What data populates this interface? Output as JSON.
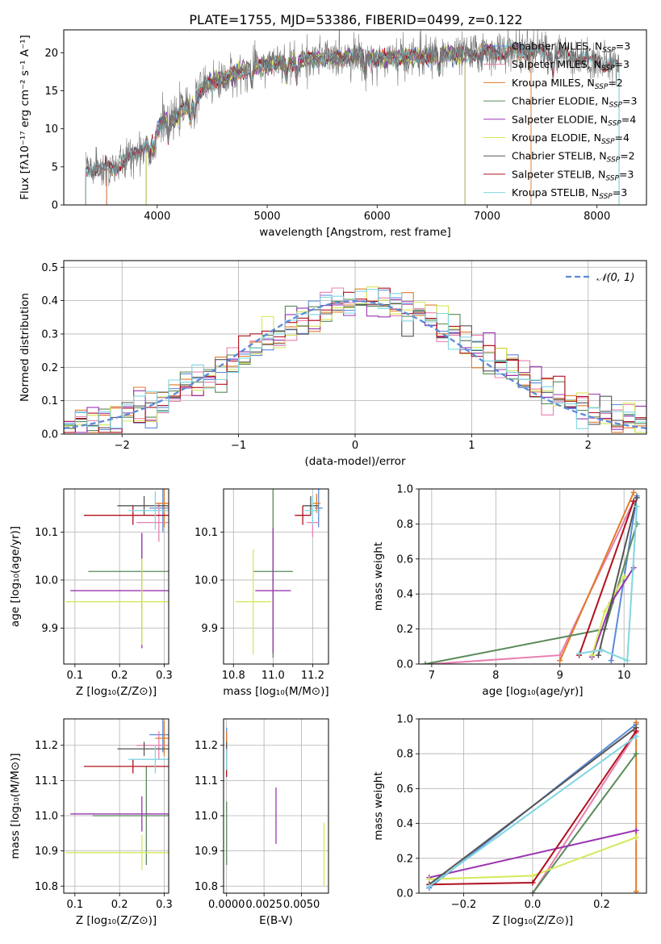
{
  "title": "PLATE=1755, MJD=53386, FIBERID=0499, z=0.122",
  "colors": {
    "Chabrier MILES": "#5b8ad8",
    "Salpeter MILES": "#e87fb0",
    "Kroupa MILES": "#e07b2a",
    "Chabrier ELODIE": "#5a8a5a",
    "Salpeter ELODIE": "#9a35b0",
    "Kroupa ELODIE": "#d6e85a",
    "Chabrier STELIB": "#555555",
    "Salpeter STELIB": "#b0101e",
    "Kroupa STELIB": "#7fd6e0"
  },
  "chart_data": [
    {
      "type": "line",
      "id": "spectrum",
      "title": "PLATE=1755, MJD=53386, FIBERID=0499, z=0.122",
      "xlabel": "wavelength [Angstrom, rest frame]",
      "ylabel": "Flux [fλ10⁻¹⁷ erg cm⁻² s⁻¹ A⁻¹]",
      "xlim": [
        3150,
        8450
      ],
      "ylim": [
        0,
        23
      ],
      "xticks": [
        4000,
        5000,
        6000,
        7000,
        8000
      ],
      "yticks": [
        0,
        5,
        10,
        15,
        20
      ],
      "grid": false,
      "legend_position": "right",
      "legend": [
        "Chabrier MILES, N_SSP=3",
        "Salpeter MILES, N_SSP=3",
        "Kroupa MILES, N_SSP=2",
        "Chabrier ELODIE, N_SSP=3",
        "Salpeter ELODIE, N_SSP=4",
        "Kroupa ELODIE, N_SSP=4",
        "Chabrier STELIB, N_SSP=2",
        "Salpeter STELIB, N_SSP=3",
        "Kroupa STELIB, N_SSP=3"
      ],
      "continuum": {
        "x": [
          3350,
          3500,
          3650,
          3800,
          3950,
          4050,
          4150,
          4300,
          4450,
          4600,
          4800,
          5000,
          5200,
          5400,
          5600,
          5800,
          6000,
          6200,
          6400,
          6600,
          6800,
          7000,
          7200,
          7400,
          7600,
          7800,
          8000,
          8200
        ],
        "y": [
          4.8,
          4.6,
          5.2,
          6.8,
          8.5,
          11.0,
          11.3,
          13.5,
          15.8,
          16.5,
          17.8,
          18.5,
          18.7,
          19.2,
          19.3,
          19.6,
          19.2,
          19.3,
          19.5,
          19.8,
          19.8,
          20.0,
          20.2,
          20.1,
          20.0,
          19.5,
          18.8,
          18.2
        ]
      },
      "model_ranges": [
        {
          "model": "Chabrier MILES",
          "x": [
            3540,
            7400
          ]
        },
        {
          "model": "Salpeter MILES",
          "x": [
            3540,
            7400
          ]
        },
        {
          "model": "Kroupa MILES",
          "x": [
            3540,
            7400
          ]
        },
        {
          "model": "Chabrier ELODIE",
          "x": [
            3900,
            6800
          ]
        },
        {
          "model": "Salpeter ELODIE",
          "x": [
            3900,
            6800
          ]
        },
        {
          "model": "Kroupa ELODIE",
          "x": [
            3900,
            6800
          ]
        },
        {
          "model": "Chabrier STELIB",
          "x": [
            3350,
            8200
          ]
        },
        {
          "model": "Salpeter STELIB",
          "x": [
            3350,
            8200
          ]
        },
        {
          "model": "Kroupa STELIB",
          "x": [
            3350,
            8200
          ]
        }
      ]
    },
    {
      "type": "histogram",
      "id": "residuals",
      "xlabel": "(data-model)/error",
      "ylabel": "Normed distribution",
      "xlim": [
        -2.5,
        2.5
      ],
      "ylim": [
        0,
        0.52
      ],
      "xticks": [
        -2,
        -1,
        0,
        1,
        2
      ],
      "yticks": [
        0.0,
        0.1,
        0.2,
        0.3,
        0.4,
        0.5
      ],
      "grid": true,
      "legend_position": "top-right",
      "reference_curve": {
        "name": "𝒩(0, 1)",
        "mean": 0,
        "sd": 1
      }
    },
    {
      "type": "scatter",
      "id": "z-age",
      "xlabel": "Z [log₁₀(Z/Z⊙)]",
      "ylabel": "age  [log₁₀(age/yr)]",
      "xlim": [
        0.075,
        0.31
      ],
      "ylim": [
        9.825,
        10.19
      ],
      "xticks": [
        0.1,
        0.2,
        0.3
      ],
      "yticks": [
        9.9,
        10.0,
        10.1
      ],
      "grid": true,
      "points": [
        {
          "model": "Chabrier MILES",
          "x": 0.297,
          "y": 10.15,
          "xerr": 0.03,
          "yerr": 0.05
        },
        {
          "model": "Salpeter MILES",
          "x": 0.288,
          "y": 10.12,
          "xerr": 0.05,
          "yerr": 0.04
        },
        {
          "model": "Kroupa MILES",
          "x": 0.3,
          "y": 10.16,
          "xerr": 0.02,
          "yerr": 0.05
        },
        {
          "model": "Chabrier ELODIE",
          "x": 0.25,
          "y": 10.018,
          "xerr": 0.12,
          "yerr": 0.08
        },
        {
          "model": "Salpeter ELODIE",
          "x": 0.25,
          "y": 9.978,
          "xerr": 0.16,
          "yerr": 0.12
        },
        {
          "model": "Kroupa ELODIE",
          "x": 0.25,
          "y": 9.955,
          "xerr": 0.17,
          "yerr": 0.09
        },
        {
          "model": "Chabrier STELIB",
          "x": 0.255,
          "y": 10.155,
          "xerr": 0.06,
          "yerr": 0.02
        },
        {
          "model": "Salpeter STELIB",
          "x": 0.23,
          "y": 10.135,
          "xerr": 0.11,
          "yerr": 0.02
        },
        {
          "model": "Kroupa STELIB",
          "x": 0.28,
          "y": 10.145,
          "xerr": 0.06,
          "yerr": 0.04
        }
      ]
    },
    {
      "type": "scatter",
      "id": "mass-age",
      "xlabel": "mass [log₁₀(M/M⊙)]",
      "ylabel": "",
      "xlim": [
        10.75,
        11.28
      ],
      "ylim": [
        9.825,
        10.19
      ],
      "xticks": [
        10.8,
        11.0,
        11.2
      ],
      "yticks": [
        9.9,
        10.0,
        10.1
      ],
      "grid": true,
      "points": [
        {
          "model": "Chabrier MILES",
          "x": 11.23,
          "y": 10.15,
          "xerr": 0.02,
          "yerr": 0.04
        },
        {
          "model": "Salpeter MILES",
          "x": 11.2,
          "y": 10.12,
          "xerr": 0.03,
          "yerr": 0.03
        },
        {
          "model": "Kroupa MILES",
          "x": 11.22,
          "y": 10.16,
          "xerr": 0.02,
          "yerr": 0.02
        },
        {
          "model": "Chabrier ELODIE",
          "x": 11.0,
          "y": 10.018,
          "xerr": 0.1,
          "yerr": 0.18
        },
        {
          "model": "Salpeter ELODIE",
          "x": 11.0,
          "y": 9.978,
          "xerr": 0.09,
          "yerr": 0.13
        },
        {
          "model": "Kroupa ELODIE",
          "x": 10.9,
          "y": 9.955,
          "xerr": 0.09,
          "yerr": 0.11
        },
        {
          "model": "Chabrier STELIB",
          "x": 11.19,
          "y": 10.155,
          "xerr": 0.04,
          "yerr": 0.02
        },
        {
          "model": "Salpeter STELIB",
          "x": 11.15,
          "y": 10.135,
          "xerr": 0.04,
          "yerr": 0.02
        },
        {
          "model": "Kroupa STELIB",
          "x": 11.2,
          "y": 10.145,
          "xerr": 0.04,
          "yerr": 0.03
        }
      ]
    },
    {
      "type": "line",
      "id": "age-weight",
      "xlabel": "age  [log₁₀(age/yr)]",
      "ylabel": "mass weight",
      "xlim": [
        6.8,
        10.35
      ],
      "ylim": [
        0,
        1
      ],
      "xticks": [
        7,
        8,
        9,
        10
      ],
      "yticks": [
        0.0,
        0.2,
        0.4,
        0.6,
        0.8,
        1.0
      ],
      "grid": true,
      "series": [
        {
          "model": "Chabrier MILES",
          "x": [
            9.8,
            10.2,
            10.2
          ],
          "y": [
            0.02,
            0.96,
            0.95
          ]
        },
        {
          "model": "Salpeter MILES",
          "x": [
            7.0,
            9.0,
            10.15
          ],
          "y": [
            0.0,
            0.05,
            0.93
          ]
        },
        {
          "model": "Kroupa MILES",
          "x": [
            9.0,
            10.15
          ],
          "y": [
            0.02,
            0.98
          ]
        },
        {
          "model": "Chabrier ELODIE",
          "x": [
            6.9,
            9.7,
            10.2
          ],
          "y": [
            0.0,
            0.2,
            0.8
          ]
        },
        {
          "model": "Salpeter ELODIE",
          "x": [
            9.5,
            9.8,
            10.15
          ],
          "y": [
            0.04,
            0.35,
            0.55
          ]
        },
        {
          "model": "Kroupa ELODIE",
          "x": [
            9.5,
            9.7,
            10.0
          ],
          "y": [
            0.05,
            0.3,
            0.5
          ]
        },
        {
          "model": "Chabrier STELIB",
          "x": [
            9.6,
            10.2
          ],
          "y": [
            0.05,
            0.95
          ]
        },
        {
          "model": "Salpeter STELIB",
          "x": [
            9.3,
            10.15
          ],
          "y": [
            0.05,
            0.93
          ]
        },
        {
          "model": "Kroupa STELIB",
          "x": [
            9.3,
            9.65,
            10.05,
            10.2
          ],
          "y": [
            0.06,
            0.08,
            0.02,
            0.9
          ]
        }
      ]
    },
    {
      "type": "scatter",
      "id": "z-mass",
      "xlabel": "Z [log₁₀(Z/Z⊙)]",
      "ylabel": "mass [log₁₀(M/M⊙)]",
      "xlim": [
        0.075,
        0.31
      ],
      "ylim": [
        10.78,
        11.275
      ],
      "xticks": [
        0.1,
        0.2,
        0.3
      ],
      "yticks": [
        10.8,
        10.9,
        11.0,
        11.1,
        11.2
      ],
      "grid": true,
      "points": [
        {
          "model": "Chabrier MILES",
          "x": 0.297,
          "y": 11.23,
          "xerr": 0.03,
          "yerr": 0.05
        },
        {
          "model": "Salpeter MILES",
          "x": 0.288,
          "y": 11.2,
          "xerr": 0.05,
          "yerr": 0.04
        },
        {
          "model": "Kroupa MILES",
          "x": 0.3,
          "y": 11.22,
          "xerr": 0.02,
          "yerr": 0.05
        },
        {
          "model": "Chabrier ELODIE",
          "x": 0.26,
          "y": 11.0,
          "xerr": 0.12,
          "yerr": 0.14
        },
        {
          "model": "Salpeter ELODIE",
          "x": 0.25,
          "y": 11.005,
          "xerr": 0.16,
          "yerr": 0.05
        },
        {
          "model": "Kroupa ELODIE",
          "x": 0.25,
          "y": 10.895,
          "xerr": 0.17,
          "yerr": 0.05
        },
        {
          "model": "Chabrier STELIB",
          "x": 0.255,
          "y": 11.19,
          "xerr": 0.06,
          "yerr": 0.02
        },
        {
          "model": "Salpeter STELIB",
          "x": 0.23,
          "y": 11.14,
          "xerr": 0.11,
          "yerr": 0.02
        },
        {
          "model": "Kroupa STELIB",
          "x": 0.28,
          "y": 11.16,
          "xerr": 0.06,
          "yerr": 0.04
        }
      ]
    },
    {
      "type": "scatter",
      "id": "ebv-mass",
      "xlabel": "E(B-V)",
      "ylabel": "",
      "xlim": [
        -0.0002,
        0.0068
      ],
      "ylim": [
        10.78,
        11.275
      ],
      "xticks": [
        0.0,
        0.0025,
        0.005
      ],
      "xticklabels": [
        "0.0000",
        "0.0025",
        "0.0050"
      ],
      "yticks": [
        10.8,
        10.9,
        11.0,
        11.1,
        11.2
      ],
      "grid": true,
      "points": [
        {
          "model": "Chabrier MILES",
          "x": 0.0,
          "y": 11.23,
          "xerr": 0,
          "yerr": 0.02
        },
        {
          "model": "Salpeter MILES",
          "x": 0.0,
          "y": 11.2,
          "xerr": 0,
          "yerr": 0.03
        },
        {
          "model": "Kroupa MILES",
          "x": 0.0,
          "y": 11.22,
          "xerr": 0,
          "yerr": 0.02
        },
        {
          "model": "Chabrier ELODIE",
          "x": 0.0,
          "y": 10.95,
          "xerr": 0,
          "yerr": 0.09
        },
        {
          "model": "Salpeter ELODIE",
          "x": 0.0033,
          "y": 11.0,
          "xerr": 0,
          "yerr": 0.08
        },
        {
          "model": "Kroupa ELODIE",
          "x": 0.0065,
          "y": 10.89,
          "xerr": 0,
          "yerr": 0.09
        },
        {
          "model": "Chabrier STELIB",
          "x": 0.0,
          "y": 11.19,
          "xerr": 0,
          "yerr": 0.02
        },
        {
          "model": "Salpeter STELIB",
          "x": 0.0,
          "y": 11.15,
          "xerr": 0,
          "yerr": 0.04
        },
        {
          "model": "Kroupa STELIB",
          "x": 0.0,
          "y": 11.16,
          "xerr": 0,
          "yerr": 0.03
        }
      ]
    },
    {
      "type": "line",
      "id": "z-weight",
      "xlabel": "Z [log₁₀(Z/Z⊙)]",
      "ylabel": "mass weight",
      "xlim": [
        -0.33,
        0.33
      ],
      "ylim": [
        0,
        1
      ],
      "xticks": [
        -0.2,
        0.0,
        0.2
      ],
      "yticks": [
        0.0,
        0.2,
        0.4,
        0.6,
        0.8,
        1.0
      ],
      "grid": true,
      "series": [
        {
          "model": "Chabrier MILES",
          "x": [
            -0.3,
            0.3
          ],
          "y": [
            0.03,
            0.97
          ]
        },
        {
          "model": "Salpeter MILES",
          "x": [
            0.0,
            0.3
          ],
          "y": [
            0.0,
            0.92
          ]
        },
        {
          "model": "Kroupa MILES",
          "x": [
            0.3,
            0.3
          ],
          "y": [
            0.01,
            0.98
          ]
        },
        {
          "model": "Chabrier ELODIE",
          "x": [
            0.0,
            0.3
          ],
          "y": [
            0.0,
            0.8
          ]
        },
        {
          "model": "Salpeter ELODIE",
          "x": [
            -0.3,
            0.3
          ],
          "y": [
            0.09,
            0.36
          ]
        },
        {
          "model": "Kroupa ELODIE",
          "x": [
            -0.3,
            0.0,
            0.3
          ],
          "y": [
            0.08,
            0.1,
            0.32
          ]
        },
        {
          "model": "Chabrier STELIB",
          "x": [
            -0.3,
            0.3
          ],
          "y": [
            0.05,
            0.95
          ]
        },
        {
          "model": "Salpeter STELIB",
          "x": [
            -0.3,
            0.0,
            0.3
          ],
          "y": [
            0.05,
            0.06,
            0.93
          ]
        },
        {
          "model": "Kroupa STELIB",
          "x": [
            -0.3,
            0.3
          ],
          "y": [
            0.04,
            0.9
          ]
        }
      ]
    }
  ]
}
